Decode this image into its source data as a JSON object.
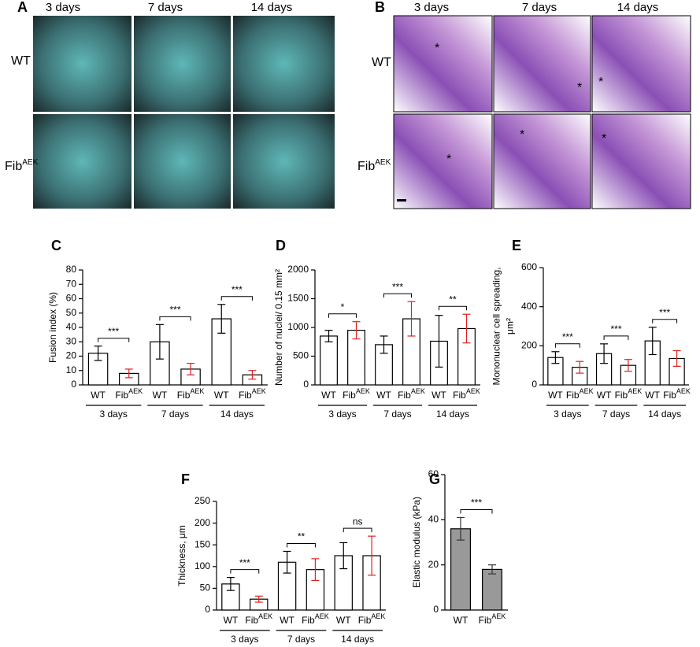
{
  "panel_a": {
    "label": "A",
    "columns": [
      "3 days",
      "7 days",
      "14 days"
    ],
    "rows": [
      "WT",
      "Fib"
    ],
    "row_superscripts": [
      null,
      "AEK"
    ]
  },
  "panel_b": {
    "label": "B",
    "columns": [
      "3 days",
      "7 days",
      "14 days"
    ],
    "rows": [
      "WT",
      "Fib"
    ],
    "row_superscripts": [
      null,
      "AEK"
    ],
    "asterisks": [
      "*",
      "*",
      "*",
      "*",
      "*",
      "*"
    ]
  },
  "chart_data": [
    {
      "type": "bar",
      "panel": "C",
      "ylabel": [
        "Fusion index (%)"
      ],
      "categories": [
        "WT",
        "Fib",
        "WT",
        "Fib",
        "WT",
        "Fib"
      ],
      "category_superscripts": [
        null,
        "AEK",
        null,
        "AEK",
        null,
        "AEK"
      ],
      "groups": [
        "3 days",
        "7 days",
        "14 days"
      ],
      "values": [
        22,
        8,
        30,
        11,
        46,
        7
      ],
      "errors": [
        5,
        3,
        12,
        4,
        10,
        3
      ],
      "significance": [
        "***",
        "***",
        "***"
      ],
      "bar_color": "#ffffff",
      "error_colors": [
        "#000000",
        "#e02020"
      ],
      "ylim": [
        0,
        80
      ],
      "yticks": [
        0,
        10,
        20,
        30,
        40,
        50,
        60,
        70,
        80
      ]
    },
    {
      "type": "bar",
      "panel": "D",
      "ylabel": [
        "Number of nuclei/ 0.15 mm²"
      ],
      "categories": [
        "WT",
        "Fib",
        "WT",
        "Fib",
        "WT",
        "Fib"
      ],
      "category_superscripts": [
        null,
        "AEK",
        null,
        "AEK",
        null,
        "AEK"
      ],
      "groups": [
        "3 days",
        "7 days",
        "14 days"
      ],
      "values": [
        850,
        950,
        700,
        1150,
        760,
        980
      ],
      "errors": [
        100,
        150,
        150,
        300,
        450,
        250
      ],
      "significance": [
        "*",
        "***",
        "**"
      ],
      "bar_color": "#ffffff",
      "error_colors": [
        "#000000",
        "#e02020"
      ],
      "ylim": [
        0,
        2000
      ],
      "yticks": [
        0,
        500,
        1000,
        1500,
        2000
      ]
    },
    {
      "type": "bar",
      "panel": "E",
      "ylabel": [
        "Mononuclear cell   spreading,",
        "μm²"
      ],
      "categories": [
        "WT",
        "Fib",
        "WT",
        "Fib",
        "WT",
        "Fib"
      ],
      "category_superscripts": [
        null,
        "AEK",
        null,
        "AEK",
        null,
        "AEK"
      ],
      "groups": [
        "3 days",
        "7 days",
        "14 days"
      ],
      "values": [
        140,
        90,
        160,
        100,
        225,
        135
      ],
      "errors": [
        30,
        30,
        50,
        30,
        70,
        40
      ],
      "significance": [
        "***",
        "***",
        "***"
      ],
      "bar_color": "#ffffff",
      "error_colors": [
        "#000000",
        "#e02020"
      ],
      "ylim": [
        0,
        600
      ],
      "yticks": [
        0,
        200,
        400,
        600
      ]
    },
    {
      "type": "bar",
      "panel": "F",
      "ylabel": [
        "Thickness, μm"
      ],
      "categories": [
        "WT",
        "Fib",
        "WT",
        "Fib",
        "WT",
        "Fib"
      ],
      "category_superscripts": [
        null,
        "AEK",
        null,
        "AEK",
        null,
        "AEK"
      ],
      "groups": [
        "3 days",
        "7 days",
        "14 days"
      ],
      "values": [
        60,
        25,
        110,
        93,
        125,
        125
      ],
      "errors": [
        15,
        7,
        25,
        25,
        30,
        45
      ],
      "significance": [
        "***",
        "**",
        "ns"
      ],
      "bar_color": "#ffffff",
      "error_colors": [
        "#000000",
        "#e02020"
      ],
      "ylim": [
        0,
        250
      ],
      "yticks": [
        0,
        50,
        100,
        150,
        200,
        250
      ]
    },
    {
      "type": "bar",
      "panel": "G",
      "ylabel": [
        "Elastic modulus (kPa)"
      ],
      "categories": [
        "WT",
        "Fib"
      ],
      "category_superscripts": [
        null,
        "AEK"
      ],
      "values": [
        36,
        18
      ],
      "errors": [
        5,
        2
      ],
      "significance": [
        "***"
      ],
      "bar_color": "#999999",
      "error_colors": [
        "#333333",
        "#333333"
      ],
      "ylim": [
        0,
        60
      ],
      "yticks": [
        0,
        20,
        40,
        60
      ]
    }
  ]
}
